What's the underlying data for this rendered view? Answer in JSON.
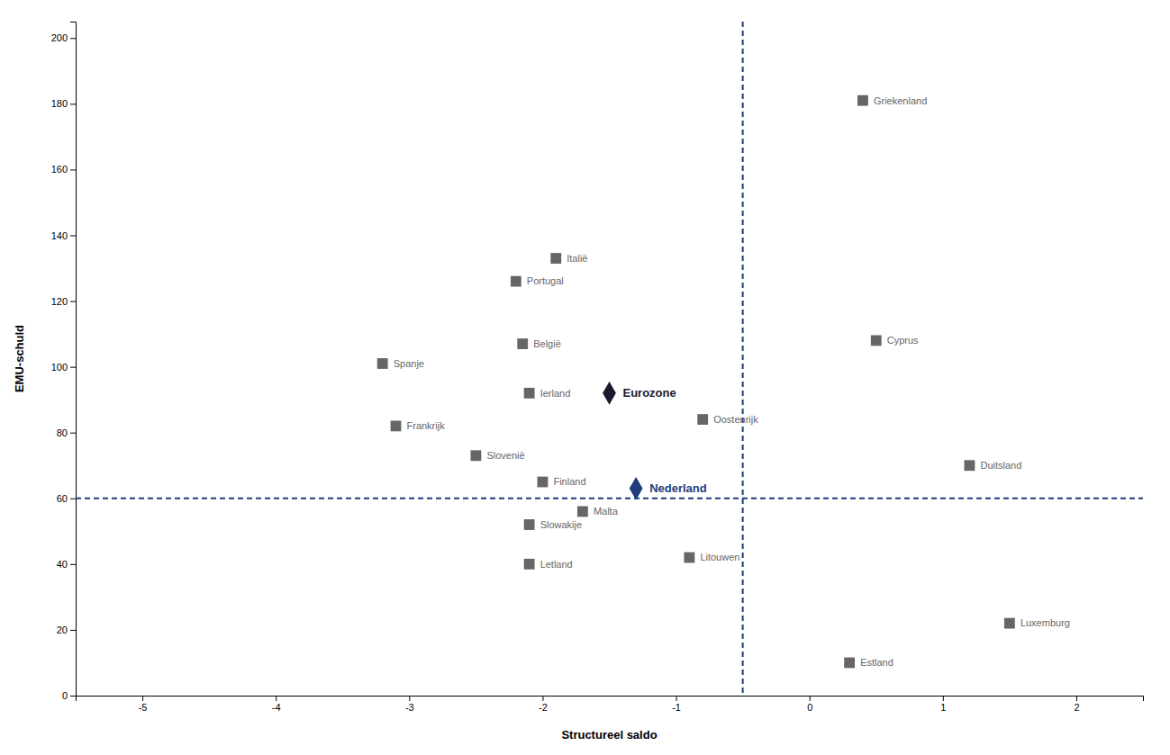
{
  "chart_data": {
    "type": "scatter",
    "xlabel": "Structureel saldo",
    "ylabel": "EMU-schuld",
    "xlim": [
      -5.5,
      2.5
    ],
    "ylim": [
      0,
      205
    ],
    "xticks": [
      -5,
      -4,
      -3,
      -2,
      -1,
      0,
      1,
      2
    ],
    "yticks": [
      0,
      20,
      40,
      60,
      80,
      100,
      120,
      140,
      160,
      180,
      200
    ],
    "grid": false,
    "series": [
      {
        "color": "#666666",
        "marker": "square",
        "x": [
          0.4,
          -1.9,
          -2.2,
          -2.15,
          0.5,
          -3.2,
          -2.1,
          -3.1,
          -0.8,
          -2.5,
          -2.0,
          1.2,
          -1.7,
          -2.1,
          -2.1,
          -0.9,
          0.3,
          1.5
        ],
        "values": [
          181,
          133,
          126,
          107,
          108,
          101,
          92,
          82,
          84,
          73,
          65,
          70,
          56,
          52,
          40,
          42,
          10,
          22
        ],
        "labels": [
          "Griekenland",
          "Italië",
          "Portugal",
          "België",
          "Cyprus",
          "Spanje",
          "Ierland",
          "Frankrijk",
          "Oostenrijk",
          "Slovenië",
          "Finland",
          "Duitsland",
          "Malta",
          "Slowakije",
          "Letland",
          "Litouwen",
          "Estland",
          "Luxemburg"
        ]
      },
      {
        "color": "#1a1a2e",
        "marker": "diamond",
        "x": [
          -1.5
        ],
        "values": [
          92
        ],
        "labels": [
          "Eurozone"
        ]
      },
      {
        "color": "#1f3d7a",
        "marker": "diamond",
        "x": [
          -1.3
        ],
        "values": [
          63
        ],
        "labels": [
          "Nederland"
        ]
      }
    ],
    "reference_lines": [
      {
        "axis": "y",
        "value": 60,
        "color": "#1f3d7a",
        "line_style": "dashed"
      },
      {
        "axis": "x",
        "value": -0.5,
        "color": "#1f3d7a",
        "line_style": "dashed"
      }
    ]
  }
}
